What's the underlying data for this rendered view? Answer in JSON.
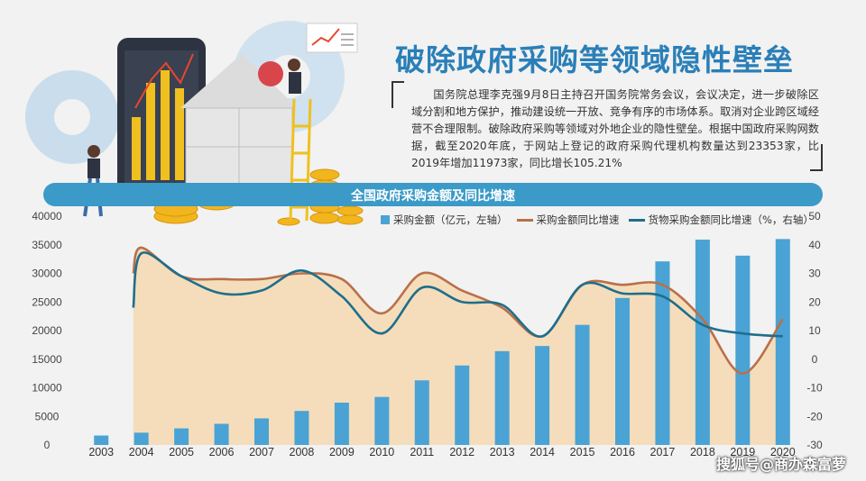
{
  "title": "破除政府采购等领域隐性壁垒",
  "intro": "国务院总理李克强9月8日主持召开国务院常务会议，会议决定，进一步破除区域分割和地方保护，推动建设统一开放、竞争有序的市场体系。取消对企业跨区域经营不合理限制。破除政府采购等领域对外地企业的隐性壁垒。根据中国政府采购网数据，截至2020年底，于网站上登记的政府采购代理机构数量达到23353家，比2019年增加11973家，同比增长105.21%",
  "watermark": "搜狐号@商办森富萝",
  "colors": {
    "bar": "#4aa3d4",
    "orange": "#b9704a",
    "teal": "#1f6e8c",
    "area": "#f5d6a8",
    "banner": "#3b9ac7"
  },
  "chart_data": {
    "type": "bar",
    "title": "全国政府采购金额及同比增速",
    "categories": [
      "2003",
      "2004",
      "2005",
      "2006",
      "2007",
      "2008",
      "2009",
      "2010",
      "2011",
      "2012",
      "2013",
      "2014",
      "2015",
      "2016",
      "2017",
      "2018",
      "2019",
      "2020"
    ],
    "series": [
      {
        "name": "采购金额（亿元，左轴）",
        "type": "bar",
        "axis": "left",
        "values": [
          1650,
          2150,
          2900,
          3700,
          4650,
          5950,
          7400,
          8400,
          11300,
          13900,
          16400,
          17300,
          21000,
          25700,
          32100,
          35900,
          33100,
          36000
        ]
      },
      {
        "name": "采购金额同比增速",
        "type": "line",
        "axis": "right",
        "values": [
          30,
          39,
          29,
          28,
          28,
          30,
          28,
          16,
          30,
          24,
          18,
          8,
          26,
          26,
          26,
          14,
          -5,
          14
        ]
      },
      {
        "name": "货物采购金额同比增速（%，右轴）",
        "type": "line",
        "axis": "right",
        "values": [
          18,
          37,
          29,
          23,
          24,
          31,
          22,
          9,
          25,
          20,
          19,
          8,
          26,
          23,
          22,
          12,
          9,
          8
        ]
      }
    ],
    "yleft": {
      "ylim": [
        0,
        40000
      ],
      "ticks": [
        "0",
        "5000",
        "10000",
        "15000",
        "20000",
        "25000",
        "30000",
        "35000",
        "40000"
      ]
    },
    "yright": {
      "ylim": [
        -30,
        50
      ],
      "ticks": [
        "-30",
        "-20",
        "-10",
        "0",
        "10",
        "20",
        "30",
        "40",
        "50"
      ]
    },
    "legend_position": "top-right",
    "grid": false
  }
}
